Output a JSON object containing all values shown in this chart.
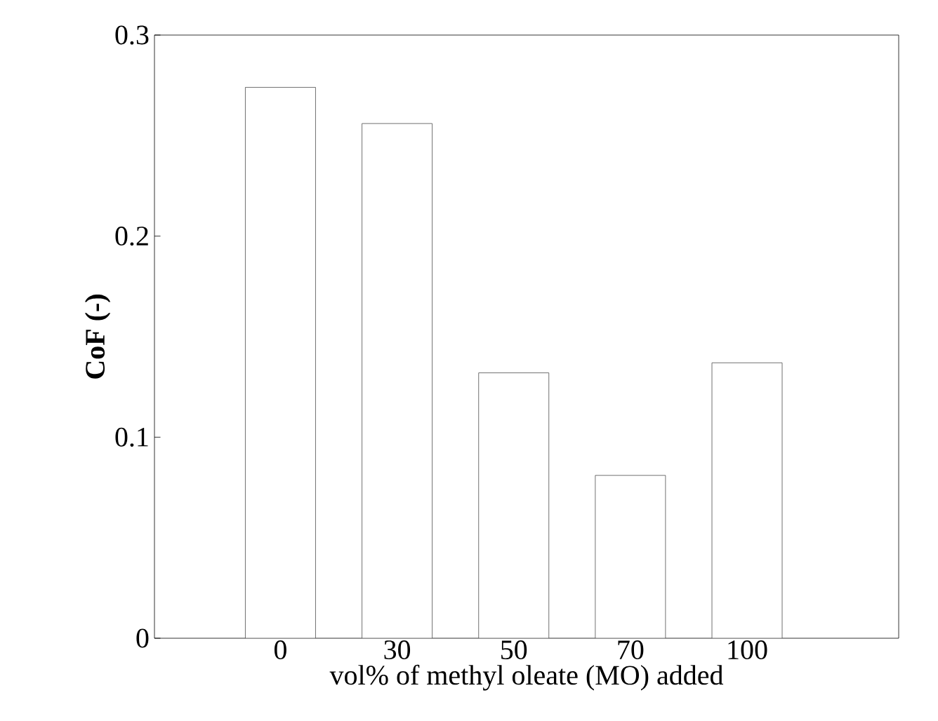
{
  "chart_data": {
    "type": "bar",
    "xlabel": "vol% of methyl oleate (MO) added",
    "ylabel": "CoF (-)",
    "categories": [
      "0",
      "30",
      "50",
      "70",
      "100"
    ],
    "values": [
      0.274,
      0.256,
      0.132,
      0.081,
      0.137
    ],
    "color": "#ffffff",
    "ylim": [
      0,
      0.3
    ],
    "yticks": [
      0,
      0.1,
      0.2,
      0.3
    ]
  }
}
